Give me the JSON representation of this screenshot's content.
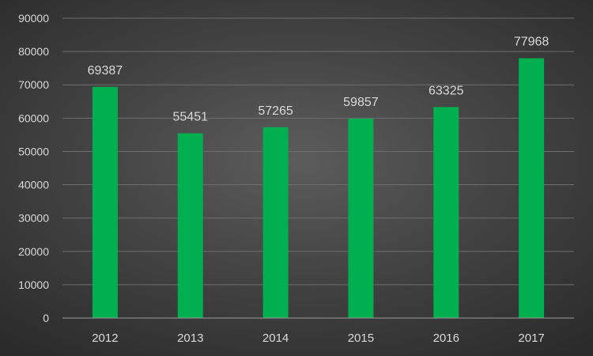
{
  "chart_data": {
    "type": "bar",
    "title": "",
    "xlabel": "",
    "ylabel": "",
    "categories": [
      "2012",
      "2013",
      "2014",
      "2015",
      "2016",
      "2017"
    ],
    "values": [
      69387,
      55451,
      57265,
      59857,
      63325,
      77968
    ],
    "data_labels": [
      "69387",
      "55451",
      "57265",
      "59857",
      "63325",
      "77968"
    ],
    "ylim": [
      0,
      90000
    ],
    "yticks": [
      0,
      10000,
      20000,
      30000,
      40000,
      50000,
      60000,
      70000,
      80000,
      90000
    ],
    "ytick_labels": [
      "0",
      "10000",
      "20000",
      "30000",
      "40000",
      "50000",
      "60000",
      "70000",
      "80000",
      "90000"
    ],
    "grid": true,
    "legend": "none",
    "colors": {
      "bar": "#00b050",
      "text": "#d9d9d9",
      "grid": "#6e6e6e",
      "axis": "#9a9a9a"
    }
  }
}
